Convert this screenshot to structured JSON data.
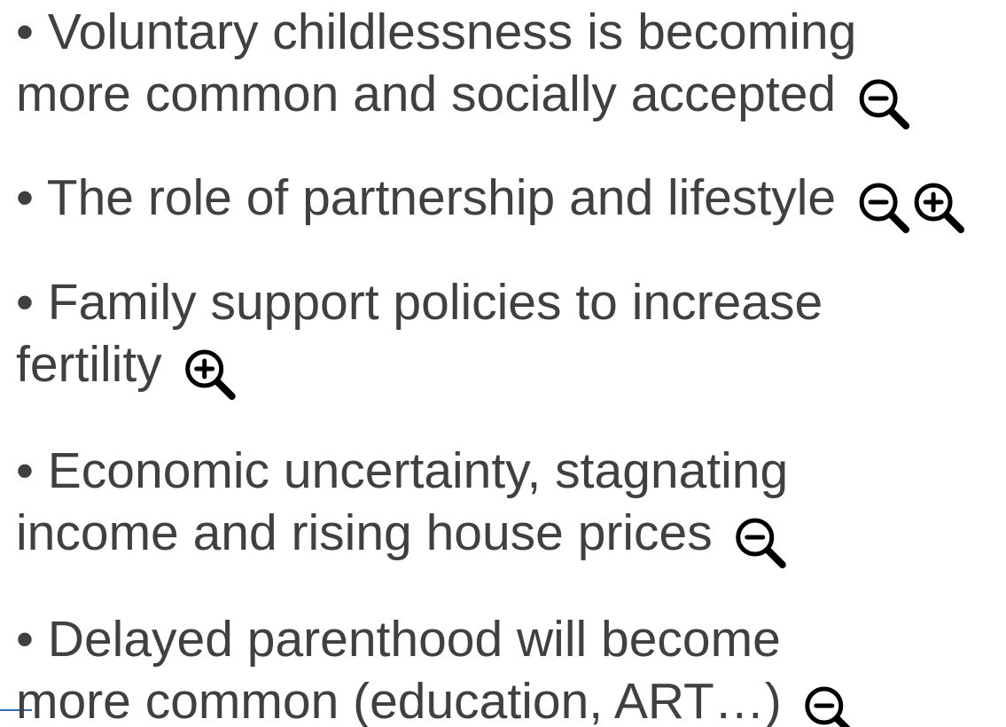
{
  "items": [
    {
      "lines": [
        "• Voluntary childlessness is becoming",
        "more common and socially accepted"
      ],
      "icons": [
        "minus"
      ]
    },
    {
      "lines": [
        "• The role of partnership and lifestyle"
      ],
      "icons": [
        "minus",
        "plus"
      ]
    },
    {
      "lines": [
        "• Family support policies to increase",
        "fertility"
      ],
      "icons": [
        "plus"
      ]
    },
    {
      "lines": [
        "• Economic uncertainty, stagnating",
        "income and rising house prices"
      ],
      "icons": [
        "minus"
      ]
    },
    {
      "lines": [
        "• Delayed parenthood will become",
        "more common (education, ART…)"
      ],
      "icons": [
        "minus"
      ]
    }
  ]
}
